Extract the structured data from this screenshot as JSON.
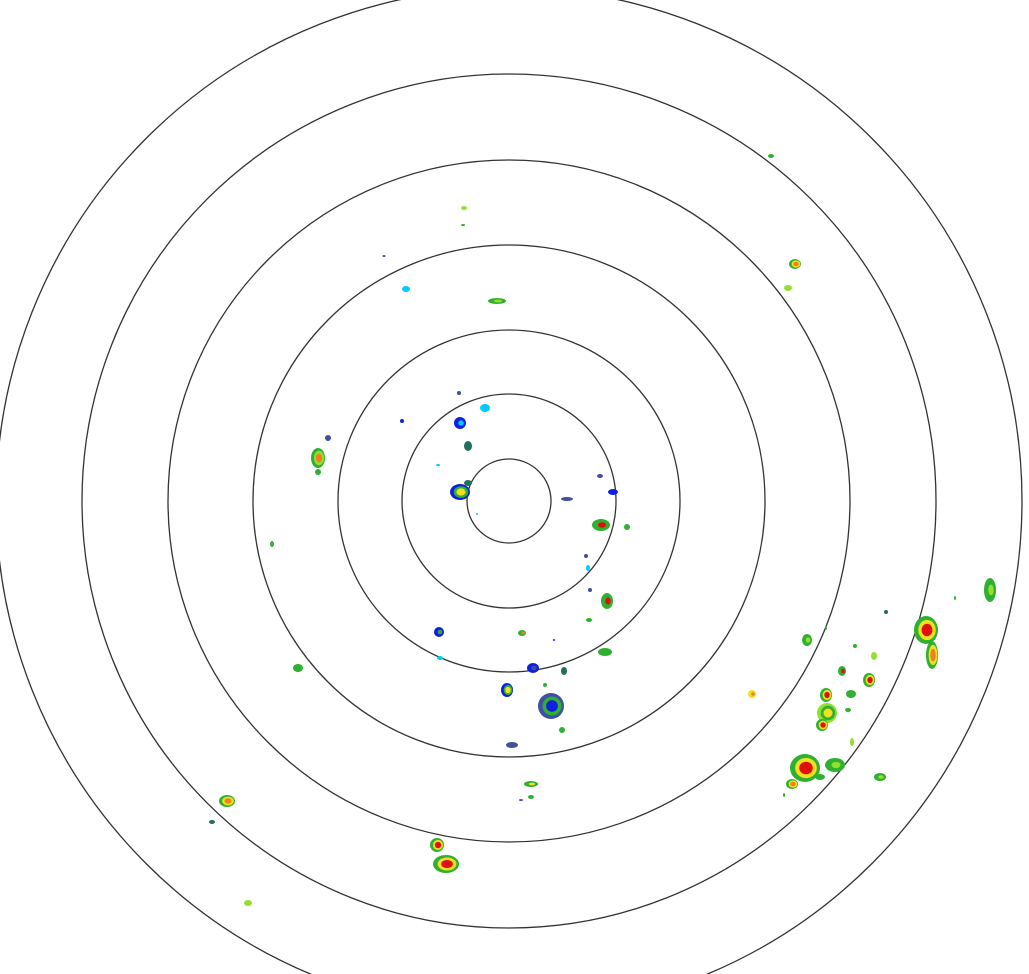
{
  "radar": {
    "range_ring_count": 7,
    "colors": {
      "background": "#ffffff",
      "ring": "#333333",
      "light_blue": "#00ccff",
      "blue": "#1020e0",
      "slate_blue": "#4050a0",
      "teal": "#207060",
      "green": "#30b030",
      "light_green": "#90e030",
      "yellow": "#f0e020",
      "orange": "#f08020",
      "red": "#e01010"
    }
  }
}
